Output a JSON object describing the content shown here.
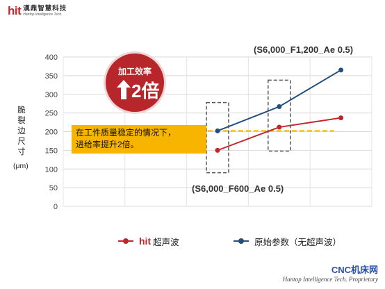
{
  "header": {
    "logo_mark": "hit",
    "logo_cn": "漢鼎智慧科技",
    "logo_en": "Hantop Intelligence Tech."
  },
  "chart_data": {
    "type": "line",
    "categories": [
      "",
      "",
      "",
      "",
      ""
    ],
    "series": [
      {
        "name": "超声波",
        "values": [
          null,
          null,
          150,
          212,
          237
        ],
        "color": "#c0272d"
      },
      {
        "name": "原始参数（无超声波）",
        "values": [
          null,
          null,
          202,
          267,
          365
        ],
        "color": "#22507e"
      }
    ],
    "ylabel": "脆裂边尺寸",
    "yunit": "(μm)",
    "ylim": [
      0,
      400
    ],
    "yticks": [
      0,
      50,
      100,
      150,
      200,
      250,
      300,
      350,
      400
    ],
    "reference_line": 202,
    "annotations": [
      "(S6,000_F1,200_Ae 0.5)",
      "(S6,000_F600_Ae 0.5)"
    ],
    "grid": true
  },
  "badge": {
    "title": "加工效率",
    "value": "2倍"
  },
  "note": {
    "line1": "在工件质量稳定的情况下，",
    "line2": "进给率提升2倍。"
  },
  "legend": {
    "hit_mark": "hit",
    "series1": "超声波",
    "series2": "原始参数（无超声波）"
  },
  "footer": {
    "brand": "CNC机床网",
    "tagline": "Hantop Intelligence Tech. Proprietary"
  },
  "colors": {
    "accent_red": "#c0272d",
    "accent_blue": "#22507e",
    "highlight": "#f7b500"
  }
}
